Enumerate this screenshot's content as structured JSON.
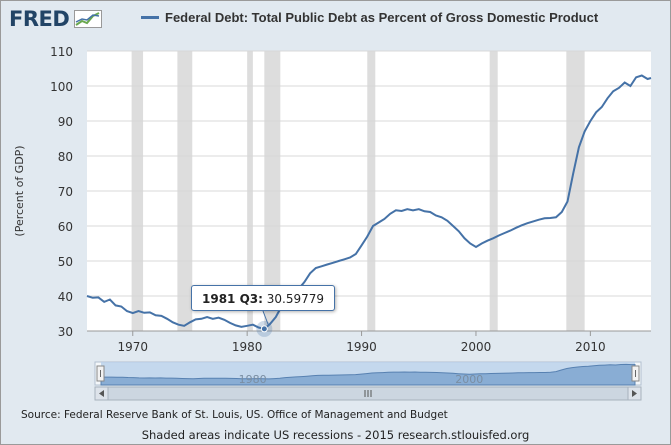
{
  "logo": {
    "text": "FRED",
    "icon": "trend-chart-icon"
  },
  "footer": {
    "source": "Source: Federal Reserve Bank of St. Louis, US. Office of Management and Budget",
    "note": "Shaded areas indicate US recessions - 2015 research.stlouisfed.org"
  },
  "tooltip": {
    "period": "1981 Q3:",
    "value": "30.59779"
  },
  "navigator": {
    "labels": [
      "1980",
      "2000"
    ]
  },
  "colors": {
    "series": "#4572a7",
    "recession": "#dddddd",
    "background": "#e1e9f0"
  },
  "chart_data": {
    "type": "line",
    "title": "Federal Debt: Total Public Debt as Percent of Gross Domestic Product",
    "ylabel": "(Percent of GDP)",
    "xlabel": "",
    "ylim": [
      30,
      110
    ],
    "xlim": [
      1966,
      2015.3
    ],
    "yticks": [
      30,
      40,
      50,
      60,
      70,
      80,
      90,
      100,
      110
    ],
    "xticks": [
      1970,
      1980,
      1990,
      2000,
      2010
    ],
    "grid": true,
    "legend": "top",
    "recessions": [
      [
        1969.9,
        1970.9
      ],
      [
        1973.9,
        1975.2
      ],
      [
        1980.0,
        1980.5
      ],
      [
        1981.5,
        1982.9
      ],
      [
        1990.5,
        1991.2
      ],
      [
        2001.2,
        2001.9
      ],
      [
        2007.9,
        2009.5
      ]
    ],
    "series": [
      {
        "name": "Federal Debt: Total Public Debt as Percent of Gross Domestic Product",
        "x": [
          1966.0,
          1966.5,
          1967.0,
          1967.5,
          1968.0,
          1968.5,
          1969.0,
          1969.5,
          1970.0,
          1970.5,
          1971.0,
          1971.5,
          1972.0,
          1972.5,
          1973.0,
          1973.5,
          1974.0,
          1974.5,
          1975.0,
          1975.5,
          1976.0,
          1976.5,
          1977.0,
          1977.5,
          1978.0,
          1978.5,
          1979.0,
          1979.5,
          1980.0,
          1980.5,
          1981.0,
          1981.5,
          1982.0,
          1982.5,
          1983.0,
          1983.5,
          1984.0,
          1984.5,
          1985.0,
          1985.5,
          1986.0,
          1986.5,
          1987.0,
          1987.5,
          1988.0,
          1988.5,
          1989.0,
          1989.5,
          1990.0,
          1990.5,
          1991.0,
          1991.5,
          1992.0,
          1992.5,
          1993.0,
          1993.5,
          1994.0,
          1994.5,
          1995.0,
          1995.5,
          1996.0,
          1996.5,
          1997.0,
          1997.5,
          1998.0,
          1998.5,
          1999.0,
          1999.5,
          2000.0,
          2000.5,
          2001.0,
          2001.5,
          2002.0,
          2002.5,
          2003.0,
          2003.5,
          2004.0,
          2004.5,
          2005.0,
          2005.5,
          2006.0,
          2006.5,
          2007.0,
          2007.5,
          2008.0,
          2008.5,
          2009.0,
          2009.5,
          2010.0,
          2010.5,
          2011.0,
          2011.5,
          2012.0,
          2012.5,
          2013.0,
          2013.5,
          2014.0,
          2014.5,
          2015.0,
          2015.3
        ],
        "values": [
          40.0,
          39.5,
          39.6,
          38.3,
          39.0,
          37.3,
          37.0,
          35.7,
          35.1,
          35.7,
          35.2,
          35.3,
          34.5,
          34.3,
          33.5,
          32.5,
          31.8,
          31.5,
          32.5,
          33.3,
          33.5,
          34.0,
          33.5,
          33.8,
          33.2,
          32.3,
          31.6,
          31.2,
          31.5,
          31.8,
          31.0,
          30.6,
          32.0,
          34.0,
          37.0,
          39.0,
          40.5,
          42.0,
          44.0,
          46.5,
          48.0,
          48.5,
          49.0,
          49.5,
          50.0,
          50.5,
          51.0,
          52.0,
          54.5,
          57.0,
          60.0,
          61.0,
          62.0,
          63.5,
          64.5,
          64.3,
          64.8,
          64.5,
          64.8,
          64.2,
          64.0,
          63.0,
          62.5,
          61.5,
          60.0,
          58.5,
          56.5,
          55.0,
          54.0,
          55.0,
          55.8,
          56.5,
          57.3,
          58.0,
          58.7,
          59.5,
          60.2,
          60.8,
          61.3,
          61.8,
          62.2,
          62.3,
          62.5,
          64.0,
          67.0,
          75.0,
          82.5,
          87.0,
          90.0,
          92.5,
          94.0,
          96.5,
          98.5,
          99.5,
          101.0,
          100.0,
          102.5,
          103.0,
          102.0,
          102.3
        ]
      }
    ]
  }
}
